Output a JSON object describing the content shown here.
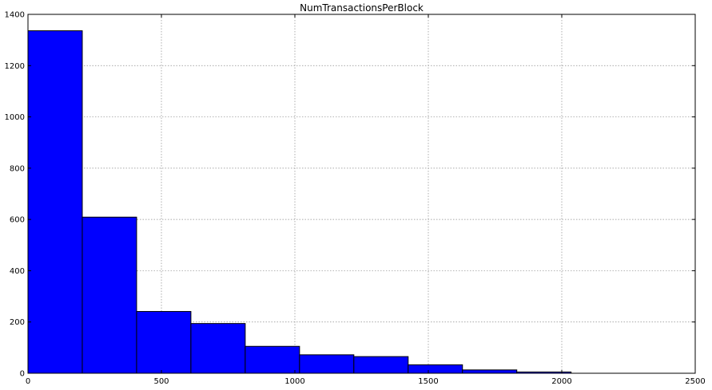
{
  "chart_data": {
    "type": "bar",
    "title": "NumTransactionsPerBlock",
    "xlabel": "",
    "ylabel": "",
    "bin_edges": [
      0,
      203.5,
      407,
      610.5,
      814,
      1017.5,
      1221,
      1424.5,
      1628,
      1831.5,
      2035
    ],
    "values": [
      1336,
      609,
      241,
      194,
      105,
      72,
      65,
      33,
      13,
      5
    ],
    "xlim": [
      0,
      2500
    ],
    "ylim": [
      0,
      1400
    ],
    "xticks": [
      0,
      500,
      1000,
      1500,
      2000,
      2500
    ],
    "yticks": [
      0,
      200,
      400,
      600,
      800,
      1000,
      1200,
      1400
    ],
    "grid": true,
    "bar_color": "#0000ff"
  }
}
